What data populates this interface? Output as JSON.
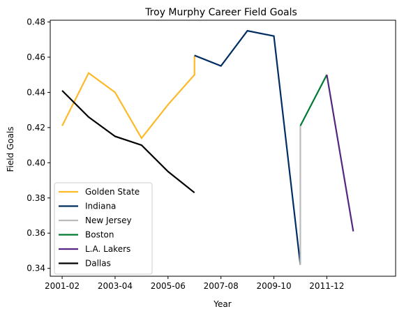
{
  "chart_data": {
    "type": "line",
    "title": "Troy Murphy Career Field Goals",
    "xlabel": "Year",
    "ylabel": "Field Goals",
    "x_ticks": [
      "2001-02",
      "2003-04",
      "2005-06",
      "2007-08",
      "2009-10",
      "2011-12"
    ],
    "xlim": [
      2000.55,
      2013.6
    ],
    "ylim": [
      0.3355,
      0.481
    ],
    "y_ticks": [
      0.34,
      0.36,
      0.38,
      0.4,
      0.42,
      0.44,
      0.46,
      0.48
    ],
    "y_tick_labels": [
      "0.34",
      "0.36",
      "0.38",
      "0.40",
      "0.42",
      "0.44",
      "0.46",
      "0.48"
    ],
    "grid": false,
    "legend_position": "lower-left",
    "series": [
      {
        "name": "Golden State",
        "color": "#FDB927",
        "points": [
          [
            2001,
            0.421
          ],
          [
            2002,
            0.451
          ],
          [
            2003,
            0.44
          ],
          [
            2004,
            0.414
          ],
          [
            2005,
            0.433
          ],
          [
            2006,
            0.45
          ],
          [
            2006,
            0.461
          ]
        ]
      },
      {
        "name": "Indiana",
        "color": "#002D62",
        "points": [
          [
            2006,
            0.461
          ],
          [
            2007,
            0.455
          ],
          [
            2008,
            0.475
          ],
          [
            2009,
            0.472
          ],
          [
            2010,
            0.342
          ]
        ]
      },
      {
        "name": "New Jersey",
        "color": "#BBBBBB",
        "points": [
          [
            2010,
            0.342
          ],
          [
            2010,
            0.421
          ]
        ]
      },
      {
        "name": "Boston",
        "color": "#007A33",
        "points": [
          [
            2010,
            0.421
          ],
          [
            2011,
            0.45
          ]
        ]
      },
      {
        "name": "L.A. Lakers",
        "color": "#552583",
        "points": [
          [
            2011,
            0.45
          ],
          [
            2012,
            0.361
          ]
        ]
      },
      {
        "name": "Dallas",
        "color": "#000000",
        "points": [
          [
            2001,
            0.441
          ],
          [
            2002,
            0.426
          ],
          [
            2003,
            0.415
          ],
          [
            2004,
            0.41
          ],
          [
            2005,
            0.395
          ],
          [
            2006,
            0.383
          ]
        ]
      }
    ]
  }
}
